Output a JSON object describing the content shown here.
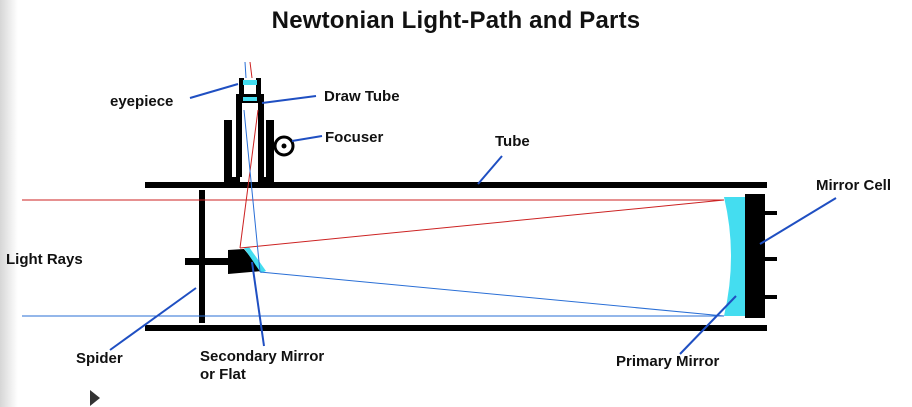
{
  "title": "Newtonian Light-Path and Parts",
  "labels": {
    "eyepiece": "eyepiece",
    "draw_tube": "Draw Tube",
    "focuser": "Focuser",
    "tube": "Tube",
    "mirror_cell": "Mirror Cell",
    "light_rays": "Light Rays",
    "spider": "Spider",
    "secondary_line1": "Secondary Mirror",
    "secondary_line2": "or Flat",
    "primary_mirror": "Primary Mirror"
  },
  "colors": {
    "red_ray": "#cc2222",
    "blue_ray": "#2a6fd6",
    "mirror": "#44ddf0",
    "leader": "#1f4fc2",
    "structure": "#000000"
  }
}
